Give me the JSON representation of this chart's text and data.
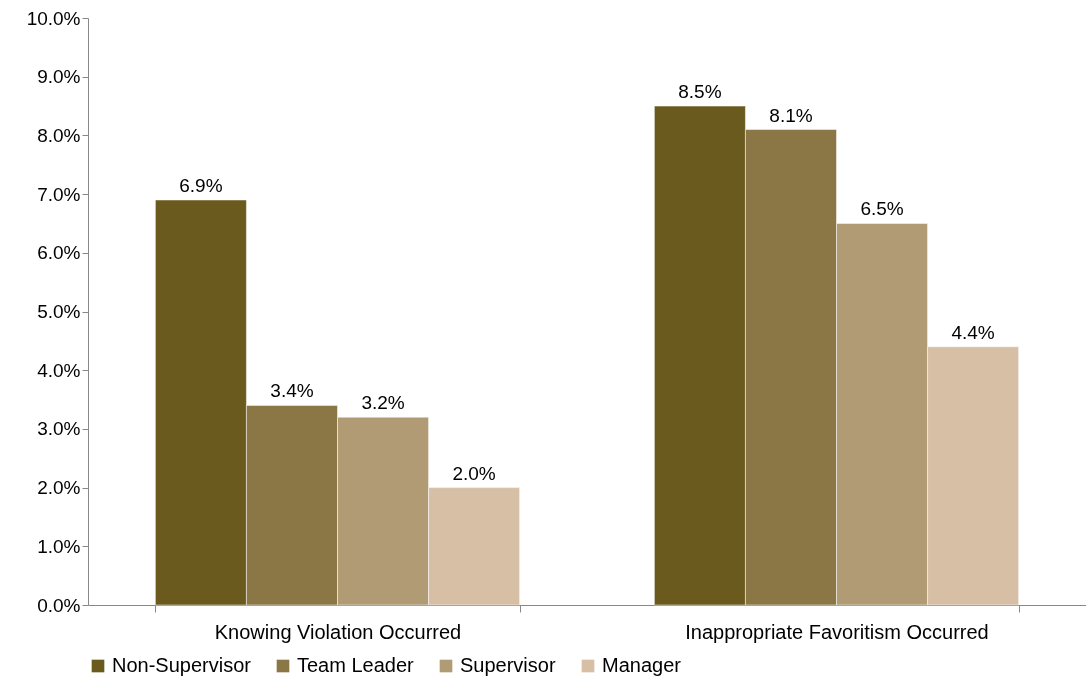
{
  "chart_data": {
    "type": "bar",
    "categories": [
      "Knowing Violation Occurred",
      "Inappropriate Favoritism Occurred"
    ],
    "series": [
      {
        "name": "Non-Supervisor",
        "color": "#6b5a1e",
        "values": [
          6.9,
          8.5
        ],
        "value_labels": [
          "6.9%",
          "8.5%"
        ]
      },
      {
        "name": "Team Leader",
        "color": "#8b7646",
        "values": [
          3.4,
          8.1
        ],
        "value_labels": [
          "3.4%",
          "8.1%"
        ]
      },
      {
        "name": "Supervisor",
        "color": "#b09b74",
        "values": [
          3.2,
          6.5
        ],
        "value_labels": [
          "3.2%",
          "6.5%"
        ]
      },
      {
        "name": "Manager",
        "color": "#d7bfa5",
        "values": [
          2.0,
          4.4
        ],
        "value_labels": [
          "2.0%",
          "4.4%"
        ]
      }
    ],
    "ylim": [
      0,
      10
    ],
    "yticks": [
      {
        "value": 0,
        "label": "0.0%"
      },
      {
        "value": 1,
        "label": "1.0%"
      },
      {
        "value": 2,
        "label": "2.0%"
      },
      {
        "value": 3,
        "label": "3.0%"
      },
      {
        "value": 4,
        "label": "4.0%"
      },
      {
        "value": 5,
        "label": "5.0%"
      },
      {
        "value": 6,
        "label": "6.0%"
      },
      {
        "value": 7,
        "label": "7.0%"
      },
      {
        "value": 8,
        "label": "8.0%"
      },
      {
        "value": 9,
        "label": "9.0%"
      },
      {
        "value": 10,
        "label": "10.0%"
      }
    ],
    "grid": false,
    "legend": "bottom"
  }
}
